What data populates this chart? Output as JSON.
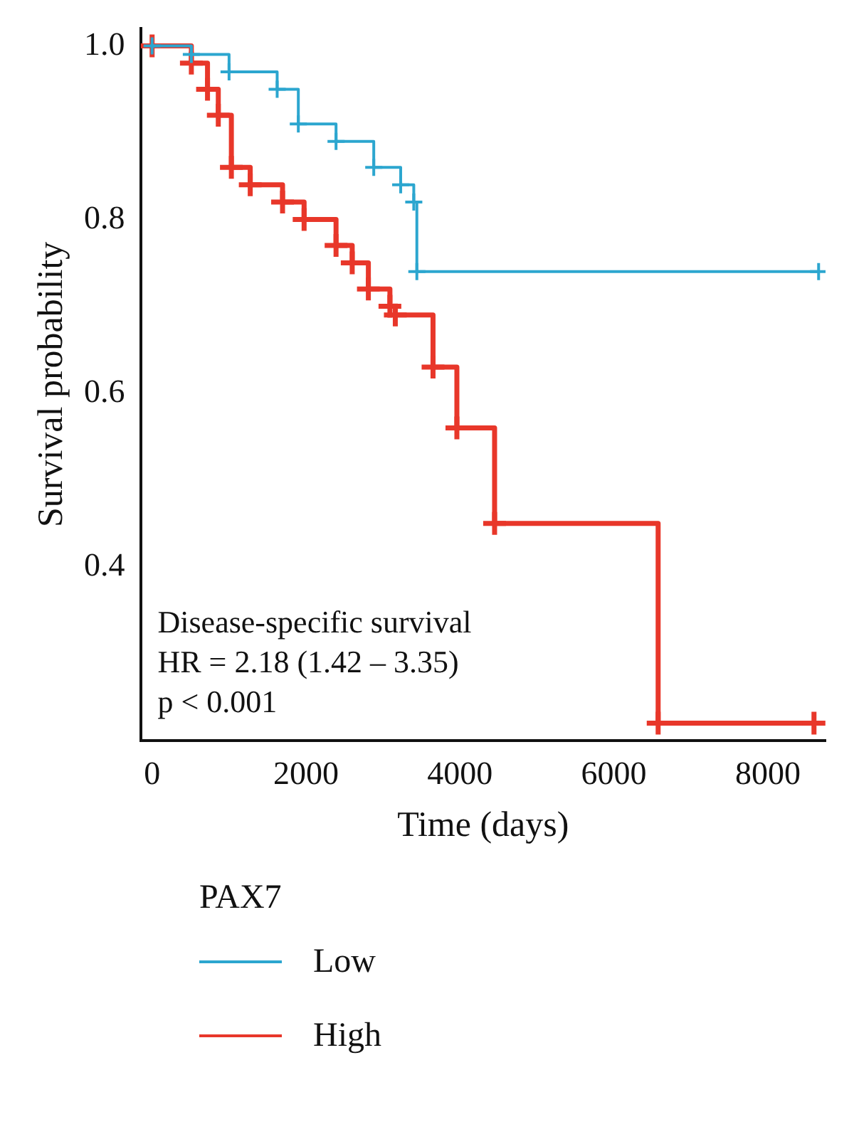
{
  "chart_data": {
    "type": "step",
    "xlabel": "Time (days)",
    "ylabel": "Survival probability",
    "legend_title": "PAX7",
    "series": [
      {
        "name": "Low",
        "color": "#2ca6cf",
        "x": [
          0,
          510,
          1000,
          1625,
          1900,
          2390,
          2880,
          3230,
          3400,
          3440,
          8660
        ],
        "values": [
          1.0,
          0.99,
          0.97,
          0.95,
          0.91,
          0.89,
          0.86,
          0.84,
          0.82,
          0.74,
          0.74
        ]
      },
      {
        "name": "High",
        "color": "#e8372a",
        "x": [
          0,
          510,
          720,
          860,
          1030,
          1275,
          1695,
          1975,
          2390,
          2600,
          2810,
          3090,
          3160,
          3650,
          3960,
          4450,
          6575,
          8600
        ],
        "values": [
          1.0,
          0.98,
          0.95,
          0.92,
          0.86,
          0.84,
          0.82,
          0.8,
          0.77,
          0.75,
          0.72,
          0.7,
          0.69,
          0.63,
          0.56,
          0.45,
          0.22,
          0.22
        ]
      }
    ],
    "xlim": [
      -150,
      8750
    ],
    "xticks": [
      0,
      2000,
      4000,
      6000,
      8000
    ],
    "ylim": [
      0.2,
      1.02
    ],
    "yticks": [
      0.4,
      0.6,
      0.8,
      {
        "value": 1,
        "label": "1.0"
      }
    ],
    "annotations": [
      "Disease-specific survival",
      "HR = 2.18 (1.42 – 3.35)",
      "p < 0.001"
    ],
    "legend": "bottom",
    "marker": "cross",
    "line_style": "solid"
  }
}
